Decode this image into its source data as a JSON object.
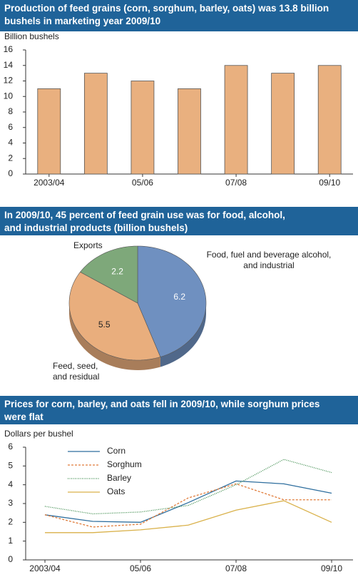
{
  "chart_data": [
    {
      "type": "bar",
      "title": "Production of feed grains (corn, sorghum, barley, oats) was 13.8 billion\nbushels in marketing year 2009/10",
      "ylabel": "Billion bushels",
      "categories": [
        "2003/04",
        null,
        "05/06",
        null,
        "07/08",
        null,
        "09/10"
      ],
      "values": [
        11,
        13,
        12,
        11,
        14,
        13,
        14
      ],
      "color": "#e9b07f",
      "ylim": [
        0,
        16
      ],
      "yticks": [
        0,
        2,
        4,
        6,
        8,
        10,
        12,
        14,
        16
      ]
    },
    {
      "type": "pie",
      "title": "In 2009/10, 45 percent of feed grain use was for food, alcohol,\nand industrial products (billion bushels)",
      "categories": [
        "Food, fuel and beverage alcohol,\nand industrial",
        "Feed, seed,\nand residual",
        "Exports"
      ],
      "values": [
        6.2,
        5.5,
        2.2
      ],
      "colors": [
        "#6f90c0",
        "#e9ae7d",
        "#7ea87a"
      ]
    },
    {
      "type": "line",
      "title": "Prices for corn, barley, and oats fell in 2009/10, while sorghum prices\nwere flat",
      "ylabel": "Dollars per bushel",
      "categories": [
        "2003/04",
        null,
        "05/06",
        null,
        "07/08",
        null,
        "09/10"
      ],
      "series": [
        {
          "name": "Corn",
          "color": "#2e6e9e",
          "values": [
            2.4,
            2.05,
            2.0,
            3.05,
            4.2,
            4.05,
            3.55
          ]
        },
        {
          "name": "Sorghum",
          "color": "#e07b39",
          "values": [
            2.4,
            1.75,
            1.9,
            3.3,
            4.05,
            3.2,
            3.2
          ]
        },
        {
          "name": "Barley",
          "color": "#3a8a4a",
          "values": [
            2.85,
            2.45,
            2.55,
            2.9,
            4.0,
            5.35,
            4.65
          ]
        },
        {
          "name": "Oats",
          "color": "#d9b14a",
          "values": [
            1.45,
            1.45,
            1.6,
            1.85,
            2.65,
            3.15,
            2.0
          ]
        }
      ],
      "ylim": [
        0,
        6
      ],
      "yticks": [
        0,
        1,
        2,
        3,
        4,
        5,
        6
      ]
    }
  ]
}
